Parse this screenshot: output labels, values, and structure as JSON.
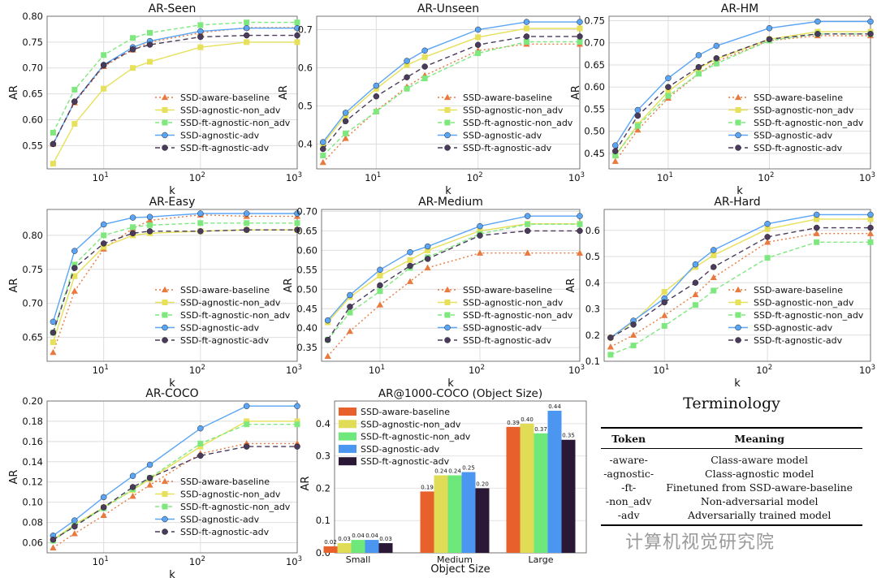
{
  "chart_data": [
    {
      "type": "line",
      "title": "AR-Seen",
      "xlabel": "k",
      "ylabel": "AR",
      "xscale": "log",
      "xlim": [
        2.6,
        1000
      ],
      "ylim": [
        0.505,
        0.8
      ],
      "yticks": [
        0.55,
        0.6,
        0.65,
        0.7,
        0.75,
        0.8
      ],
      "ytick_labels": [
        "0.55",
        "0.60",
        "0.65",
        "0.70",
        "0.75",
        "0.80"
      ],
      "legend": "lower-right",
      "x": [
        3,
        5,
        10,
        20,
        30,
        100,
        300,
        1000
      ],
      "series": [
        {
          "name": "SSD-aware-baseline",
          "values": [
            0.553,
            0.633,
            0.703,
            0.735,
            0.75,
            0.768,
            0.778,
            0.778
          ]
        },
        {
          "name": "SSD-agnostic-non_adv",
          "values": [
            0.515,
            0.592,
            0.66,
            0.7,
            0.712,
            0.74,
            0.75,
            0.75
          ]
        },
        {
          "name": "SSD-ft-agnostic-non_adv",
          "values": [
            0.575,
            0.658,
            0.725,
            0.758,
            0.768,
            0.783,
            0.788,
            0.788
          ]
        },
        {
          "name": "SSD-agnostic-adv",
          "values": [
            0.553,
            0.635,
            0.706,
            0.74,
            0.752,
            0.771,
            0.777,
            0.777
          ]
        },
        {
          "name": "SSD-ft-agnostic-adv",
          "values": [
            0.553,
            0.635,
            0.705,
            0.736,
            0.745,
            0.76,
            0.763,
            0.763
          ]
        }
      ]
    },
    {
      "type": "line",
      "title": "AR-Unseen",
      "xlabel": "k",
      "ylabel": "AR",
      "xscale": "log",
      "xlim": [
        2.6,
        1000
      ],
      "ylim": [
        0.335,
        0.735
      ],
      "yticks": [
        0.4,
        0.5,
        0.6,
        0.7
      ],
      "ytick_labels": [
        "0.4",
        "0.5",
        "0.6",
        "0.7"
      ],
      "legend": "lower-right",
      "x": [
        3,
        5,
        10,
        20,
        30,
        100,
        300,
        1000
      ],
      "series": [
        {
          "name": "SSD-aware-baseline",
          "values": [
            0.352,
            0.415,
            0.487,
            0.55,
            0.58,
            0.645,
            0.662,
            0.662
          ]
        },
        {
          "name": "SSD-agnostic-non_adv",
          "values": [
            0.4,
            0.475,
            0.545,
            0.607,
            0.628,
            0.68,
            0.703,
            0.703
          ]
        },
        {
          "name": "SSD-ft-agnostic-non_adv",
          "values": [
            0.37,
            0.428,
            0.485,
            0.545,
            0.572,
            0.638,
            0.668,
            0.668
          ]
        },
        {
          "name": "SSD-agnostic-adv",
          "values": [
            0.405,
            0.482,
            0.553,
            0.618,
            0.645,
            0.7,
            0.72,
            0.72
          ]
        },
        {
          "name": "SSD-ft-agnostic-adv",
          "values": [
            0.387,
            0.46,
            0.525,
            0.575,
            0.603,
            0.66,
            0.682,
            0.682
          ]
        }
      ]
    },
    {
      "type": "line",
      "title": "AR-HM",
      "xlabel": "k",
      "ylabel": "AR",
      "xscale": "log",
      "xlim": [
        2.6,
        1000
      ],
      "ylim": [
        0.415,
        0.76
      ],
      "yticks": [
        0.45,
        0.5,
        0.55,
        0.6,
        0.65,
        0.7,
        0.75
      ],
      "ytick_labels": [
        "0.45",
        "0.50",
        "0.55",
        "0.60",
        "0.65",
        "0.70",
        "0.75"
      ],
      "legend": "lower-right",
      "x": [
        3,
        5,
        10,
        20,
        30,
        100,
        300,
        1000
      ],
      "series": [
        {
          "name": "SSD-aware-baseline",
          "values": [
            0.432,
            0.503,
            0.575,
            0.63,
            0.658,
            0.705,
            0.716,
            0.716
          ]
        },
        {
          "name": "SSD-agnostic-non_adv",
          "values": [
            0.445,
            0.515,
            0.59,
            0.642,
            0.663,
            0.708,
            0.725,
            0.725
          ]
        },
        {
          "name": "SSD-ft-agnostic-non_adv",
          "values": [
            0.445,
            0.512,
            0.58,
            0.63,
            0.653,
            0.705,
            0.72,
            0.72
          ]
        },
        {
          "name": "SSD-agnostic-adv",
          "values": [
            0.468,
            0.548,
            0.62,
            0.672,
            0.693,
            0.733,
            0.748,
            0.748
          ]
        },
        {
          "name": "SSD-ft-agnostic-adv",
          "values": [
            0.455,
            0.535,
            0.6,
            0.645,
            0.665,
            0.708,
            0.72,
            0.72
          ]
        }
      ]
    },
    {
      "type": "line",
      "title": "AR-Easy",
      "xlabel": "k",
      "ylabel": "AR",
      "xscale": "log",
      "xlim": [
        2.6,
        1000
      ],
      "ylim": [
        0.615,
        0.838
      ],
      "yticks": [
        0.65,
        0.7,
        0.75,
        0.8
      ],
      "ytick_labels": [
        "0.65",
        "0.70",
        "0.75",
        "0.80"
      ],
      "legend": "lower-right",
      "x": [
        3,
        5,
        10,
        20,
        30,
        100,
        300,
        1000
      ],
      "series": [
        {
          "name": "SSD-aware-baseline",
          "values": [
            0.628,
            0.718,
            0.78,
            0.81,
            0.822,
            0.83,
            0.828,
            0.828
          ]
        },
        {
          "name": "SSD-agnostic-non_adv",
          "values": [
            0.643,
            0.74,
            0.783,
            0.8,
            0.803,
            0.806,
            0.808,
            0.808
          ]
        },
        {
          "name": "SSD-ft-agnostic-non_adv",
          "values": [
            0.657,
            0.757,
            0.8,
            0.812,
            0.815,
            0.818,
            0.818,
            0.818
          ]
        },
        {
          "name": "SSD-agnostic-adv",
          "values": [
            0.673,
            0.777,
            0.816,
            0.826,
            0.827,
            0.832,
            0.832,
            0.832
          ]
        },
        {
          "name": "SSD-ft-agnostic-adv",
          "values": [
            0.657,
            0.752,
            0.788,
            0.803,
            0.806,
            0.806,
            0.808,
            0.808
          ]
        }
      ]
    },
    {
      "type": "line",
      "title": "AR-Medium",
      "xlabel": "k",
      "ylabel": "AR",
      "xscale": "log",
      "xlim": [
        2.6,
        1000
      ],
      "ylim": [
        0.315,
        0.705
      ],
      "yticks": [
        0.35,
        0.4,
        0.45,
        0.5,
        0.55,
        0.6,
        0.65,
        0.7
      ],
      "ytick_labels": [
        "0.35",
        "0.40",
        "0.45",
        "0.50",
        "0.55",
        "0.60",
        "0.65",
        "0.70"
      ],
      "legend": "lower-right",
      "x": [
        3,
        5,
        10,
        20,
        30,
        100,
        300,
        1000
      ],
      "series": [
        {
          "name": "SSD-aware-baseline",
          "values": [
            0.328,
            0.392,
            0.46,
            0.52,
            0.555,
            0.593,
            0.593,
            0.593
          ]
        },
        {
          "name": "SSD-agnostic-non_adv",
          "values": [
            0.415,
            0.48,
            0.535,
            0.575,
            0.6,
            0.65,
            0.668,
            0.668
          ]
        },
        {
          "name": "SSD-ft-agnostic-non_adv",
          "values": [
            0.37,
            0.44,
            0.495,
            0.555,
            0.582,
            0.642,
            0.667,
            0.667
          ]
        },
        {
          "name": "SSD-agnostic-adv",
          "values": [
            0.42,
            0.485,
            0.55,
            0.595,
            0.61,
            0.662,
            0.688,
            0.688
          ]
        },
        {
          "name": "SSD-ft-agnostic-adv",
          "values": [
            0.37,
            0.455,
            0.51,
            0.56,
            0.578,
            0.638,
            0.65,
            0.65
          ]
        }
      ]
    },
    {
      "type": "line",
      "title": "AR-Hard",
      "xlabel": "k",
      "ylabel": "AR",
      "xscale": "log",
      "xlim": [
        2.6,
        1000
      ],
      "ylim": [
        0.1,
        0.68
      ],
      "yticks": [
        0.1,
        0.2,
        0.3,
        0.4,
        0.5,
        0.6
      ],
      "ytick_labels": [
        "0.1",
        "0.2",
        "0.3",
        "0.4",
        "0.5",
        "0.6"
      ],
      "legend": "lower-right",
      "x": [
        3,
        5,
        10,
        20,
        30,
        100,
        300,
        1000
      ],
      "series": [
        {
          "name": "SSD-aware-baseline",
          "values": [
            0.155,
            0.2,
            0.275,
            0.355,
            0.42,
            0.555,
            0.588,
            0.588
          ]
        },
        {
          "name": "SSD-agnostic-non_adv",
          "values": [
            0.19,
            0.25,
            0.365,
            0.46,
            0.505,
            0.605,
            0.643,
            0.643
          ]
        },
        {
          "name": "SSD-ft-agnostic-non_adv",
          "values": [
            0.125,
            0.16,
            0.235,
            0.315,
            0.37,
            0.495,
            0.555,
            0.555
          ]
        },
        {
          "name": "SSD-agnostic-adv",
          "values": [
            0.19,
            0.255,
            0.34,
            0.47,
            0.525,
            0.625,
            0.66,
            0.66
          ]
        },
        {
          "name": "SSD-ft-agnostic-adv",
          "values": [
            0.19,
            0.24,
            0.325,
            0.4,
            0.46,
            0.575,
            0.61,
            0.61
          ]
        }
      ]
    },
    {
      "type": "line",
      "title": "AR-COCO",
      "xlabel": "k",
      "ylabel": "AR",
      "xscale": "log",
      "xlim": [
        2.6,
        1000
      ],
      "ylim": [
        0.05,
        0.2
      ],
      "yticks": [
        0.06,
        0.08,
        0.1,
        0.12,
        0.14,
        0.16,
        0.18,
        0.2
      ],
      "ytick_labels": [
        "0.06",
        "0.08",
        "0.10",
        "0.12",
        "0.14",
        "0.16",
        "0.18",
        "0.20"
      ],
      "legend": "lower-right",
      "x": [
        3,
        5,
        10,
        20,
        30,
        100,
        300,
        1000
      ],
      "series": [
        {
          "name": "SSD-aware-baseline",
          "values": [
            0.055,
            0.069,
            0.087,
            0.106,
            0.117,
            0.148,
            0.158,
            0.158
          ]
        },
        {
          "name": "SSD-agnostic-non_adv",
          "values": [
            0.063,
            0.078,
            0.095,
            0.112,
            0.123,
            0.155,
            0.18,
            0.18
          ]
        },
        {
          "name": "SSD-ft-agnostic-non_adv",
          "values": [
            0.062,
            0.077,
            0.094,
            0.113,
            0.124,
            0.158,
            0.177,
            0.177
          ]
        },
        {
          "name": "SSD-agnostic-adv",
          "values": [
            0.067,
            0.082,
            0.105,
            0.126,
            0.137,
            0.173,
            0.195,
            0.195
          ]
        },
        {
          "name": "SSD-ft-agnostic-adv",
          "values": [
            0.063,
            0.076,
            0.095,
            0.115,
            0.124,
            0.146,
            0.155,
            0.155
          ]
        }
      ]
    },
    {
      "type": "bar",
      "title": "AR@1000-COCO (Object Size)",
      "xlabel": "Object Size",
      "ylabel": "AR",
      "ylim": [
        0,
        0.47
      ],
      "yticks": [
        0,
        0.1,
        0.2,
        0.3,
        0.4
      ],
      "ytick_labels": [
        "0.0",
        "0.1",
        "0.2",
        "0.3",
        "0.4"
      ],
      "legend": "top-left",
      "categories": [
        "Small",
        "Medium",
        "Large"
      ],
      "series": [
        {
          "name": "SSD-aware-baseline",
          "values": [
            0.02,
            0.19,
            0.39
          ],
          "labels": [
            "0.02",
            "0.19",
            "0.39"
          ]
        },
        {
          "name": "SSD-agnostic-non_adv",
          "values": [
            0.03,
            0.24,
            0.4
          ],
          "labels": [
            "0.03",
            "0.24",
            "0.40"
          ]
        },
        {
          "name": "SSD-ft-agnostic-non_adv",
          "values": [
            0.04,
            0.24,
            0.37
          ],
          "labels": [
            "0.04",
            "0.24",
            "0.37"
          ]
        },
        {
          "name": "SSD-agnostic-adv",
          "values": [
            0.04,
            0.25,
            0.44
          ],
          "labels": [
            "0.04",
            "0.25",
            "0.44"
          ]
        },
        {
          "name": "SSD-ft-agnostic-adv",
          "values": [
            0.03,
            0.2,
            0.35
          ],
          "labels": [
            "0.03",
            "0.20",
            "0.35"
          ]
        }
      ]
    }
  ],
  "styles": {
    "line_colors": [
      "#e8793f",
      "#e6e05a",
      "#7ee87e",
      "#5aa5f5",
      "#4a3a5c"
    ],
    "bar_colors": [
      "#e8602c",
      "#e0dc55",
      "#6ee87a",
      "#4a96f0",
      "#2a1836"
    ],
    "markers": [
      "triangle",
      "square",
      "square",
      "circle",
      "circle"
    ],
    "dashes": [
      "2,3",
      "",
      "5,3",
      "",
      "6,4"
    ]
  },
  "terminology": {
    "title": "Terminology",
    "headers": [
      "Token",
      "Meaning"
    ],
    "rows": [
      [
        "-aware-",
        "Class-aware model"
      ],
      [
        "-agnostic-",
        "Class-agnostic model"
      ],
      [
        "-ft-",
        "Finetuned from SSD-aware-baseline"
      ],
      [
        "-non_adv",
        "Non-adversarial model"
      ],
      [
        "-adv",
        "Adversarially trained model"
      ]
    ]
  },
  "watermark": "计算机视觉研究院"
}
